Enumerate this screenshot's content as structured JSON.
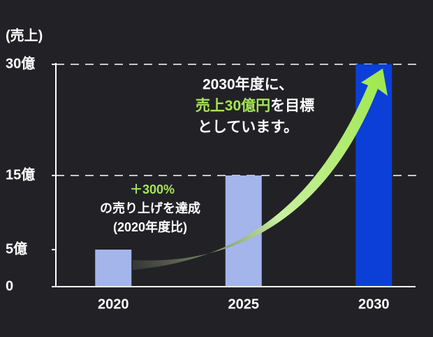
{
  "chart_data": {
    "type": "bar",
    "y_label": "(売上)",
    "categories": [
      "2020",
      "2025",
      "2030"
    ],
    "values": [
      5,
      15,
      30
    ],
    "colors": [
      "#a3b5ea",
      "#a3b5ea",
      "#0b3fd8"
    ],
    "ylim": [
      0,
      30
    ],
    "yticks": [
      0,
      {
        "value": 5,
        "label": "5億"
      },
      {
        "value": 15,
        "label": "15億"
      },
      {
        "value": 30,
        "label": "30億"
      }
    ],
    "gridlines": [
      15,
      30
    ],
    "annotations": {
      "goal": [
        "2030年度に、",
        "売上30億円",
        "を目標",
        "としています。"
      ],
      "growth": [
        "＋300%",
        "の売り上げを達成",
        "(2020年度比)"
      ]
    }
  }
}
